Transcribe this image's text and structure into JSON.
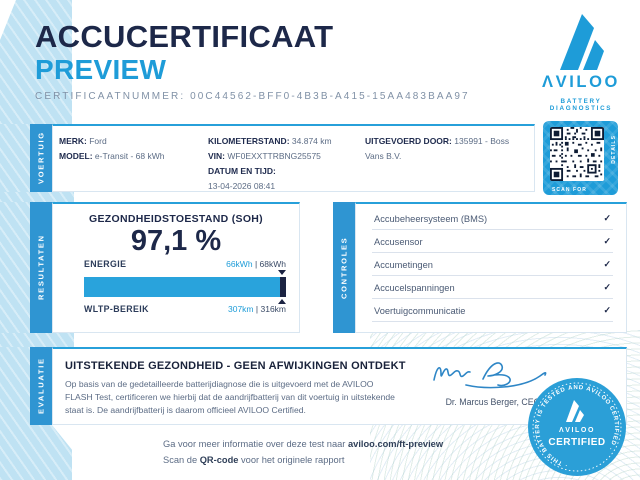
{
  "header": {
    "title": "ACCUCERTIFICAAT",
    "subtitle": "PREVIEW",
    "certificate_number": "CERTIFICAATNUMMER: 00C44562-BFF0-4B3B-A415-15AA483BAA97",
    "logo": {
      "brand": "ΛVILOO",
      "tagline": "BATTERY DIAGNOSTICS"
    }
  },
  "vehicle": {
    "tab": "VOERTUIG",
    "fields": [
      {
        "label": "MERK:",
        "value": "Ford"
      },
      {
        "label": "MODEL:",
        "value": "e-Transit - 68 kWh"
      },
      {
        "label": "KILOMETERSTAND:",
        "value": "34.874 km"
      },
      {
        "label": "VIN:",
        "value": "WF0EXXTTRBNG25575"
      },
      {
        "label": "DATUM EN TIJD:",
        "value": "13-04-2026 08:41"
      },
      {
        "label": "UITGEVOERD DOOR:",
        "value": "135991 - Boss Vans B.V."
      }
    ],
    "qr": {
      "caption_bottom": "SCAN FOR",
      "caption_side": "DETAILS"
    }
  },
  "results": {
    "tab": "RESULTATEN",
    "soh_label": "GEZONDHEIDSTOESTAND (SOH)",
    "soh_value": "97,1 %",
    "bar_percent": 97.1,
    "energy_label": "ENERGIE",
    "energy_current": "66kWh",
    "separator": "|",
    "energy_total": "68kWh",
    "range_label": "WLTP-BEREIK",
    "range_current": "307km",
    "range_total": "316km"
  },
  "checks": {
    "tab": "CONTROLES",
    "check_glyph": "✓",
    "items": [
      "Accubeheersysteem (BMS)",
      "Accusensor",
      "Accumetingen",
      "Accucelspanningen",
      "Voertuigcommunicatie"
    ]
  },
  "evaluation": {
    "tab": "EVALUATIE",
    "title": "UITSTEKENDE GEZONDHEID - GEEN AFWIJKINGEN ONTDEKT",
    "body": "Op basis van de gedetailleerde batterijdiagnose die is uitgevoerd met de AVILOO FLASH Test, certificeren we hierbij dat de aandrijfbatterij van dit voertuig in uitstekende staat is. De aandrijfbatterij is daarom officieel AVILOO Certified.",
    "signatory": "Dr. Marcus Berger, CEO"
  },
  "footer": {
    "line1_prefix": "Ga voor meer informatie over deze test naar ",
    "line1_bold": "aviloo.com/ft-preview",
    "line2_prefix": "Scan de ",
    "line2_bold": "QR-code",
    "line2_suffix": " voor het originele rapport"
  },
  "badge": {
    "ring_text": "·  THIS BATTERY IS TESTED AND AVILOO CERTIFIED  ·",
    "brand": "ΛVILOO",
    "label": "CERTIFIED"
  },
  "colors": {
    "accent_cyan": "#1e9cd8",
    "navy": "#1d2849",
    "tab_blue": "#2f95d2",
    "light_blue": "#bfe2f3",
    "bar_end_navy": "#1b2342"
  }
}
